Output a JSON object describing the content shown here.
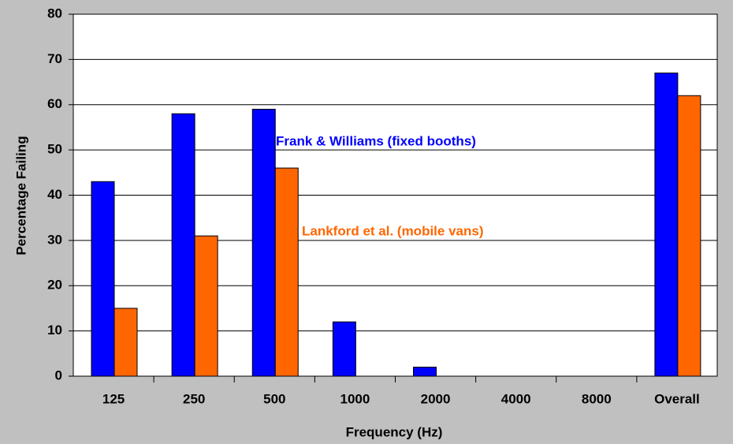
{
  "chart_data": {
    "type": "bar",
    "xlabel": "Frequency (Hz)",
    "ylabel": "Percentage Failing",
    "categories": [
      "125",
      "250",
      "500",
      "1000",
      "2000",
      "4000",
      "8000",
      "Overall"
    ],
    "series": [
      {
        "name": "Frank & Williams (fixed booths)",
        "color": "#0000ff",
        "values": [
          43,
          58,
          59,
          12,
          2,
          0,
          0,
          67
        ]
      },
      {
        "name": "Lankford et al. (mobile vans)",
        "color": "#ff6600",
        "values": [
          15,
          31,
          46,
          0,
          0,
          0,
          0,
          62
        ]
      }
    ],
    "ylim": [
      0,
      80
    ],
    "yticks": [
      0,
      10,
      20,
      30,
      40,
      50,
      60,
      70,
      80
    ],
    "grid": true
  }
}
